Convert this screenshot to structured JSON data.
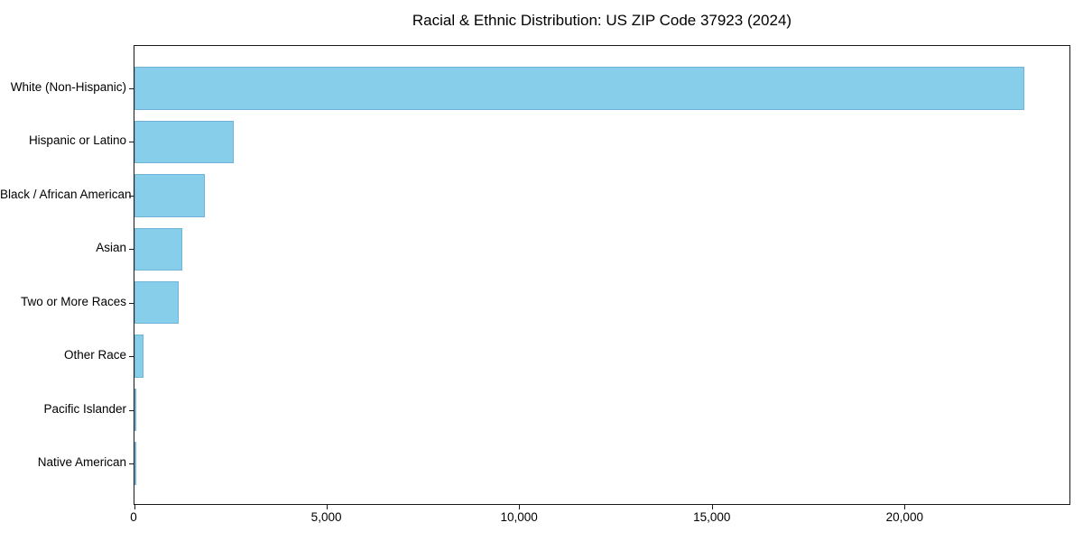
{
  "chart_data": {
    "type": "bar",
    "orientation": "horizontal",
    "title": "Racial & Ethnic Distribution: US ZIP Code 37923 (2024)",
    "categories": [
      "White (Non-Hispanic)",
      "Hispanic or Latino",
      "Black / African American",
      "Asian",
      "Two or More Races",
      "Other Race",
      "Pacific Islander",
      "Native American"
    ],
    "values": [
      23130,
      2570,
      1840,
      1240,
      1150,
      235,
      40,
      15
    ],
    "xlabel": "",
    "ylabel": "",
    "xlim": [
      0,
      24300
    ],
    "x_ticks": [
      {
        "value": 0,
        "label": "0"
      },
      {
        "value": 5000,
        "label": "5,000"
      },
      {
        "value": 10000,
        "label": "10,000"
      },
      {
        "value": 15000,
        "label": "15,000"
      },
      {
        "value": 20000,
        "label": "20,000"
      }
    ],
    "grid": false,
    "legend": null,
    "bar_color": "#87CEEB",
    "axis_color": "#1a1a1a",
    "text_color": "#000000",
    "background": "#ffffff"
  }
}
